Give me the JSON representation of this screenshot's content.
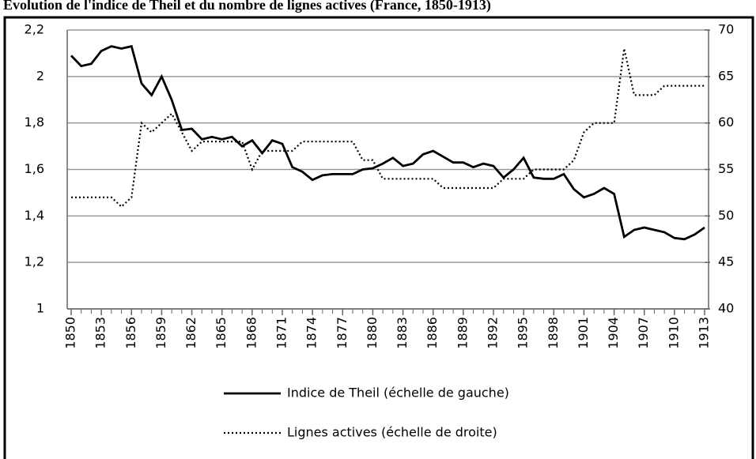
{
  "chart_data": {
    "type": "line",
    "title": "Évolution de l'indice de Theil et du nombre de lignes actives (France, 1850-1913)",
    "x": [
      1850,
      1851,
      1852,
      1853,
      1854,
      1855,
      1856,
      1857,
      1858,
      1859,
      1860,
      1861,
      1862,
      1863,
      1864,
      1865,
      1866,
      1867,
      1868,
      1869,
      1870,
      1871,
      1872,
      1873,
      1874,
      1875,
      1876,
      1877,
      1878,
      1879,
      1880,
      1881,
      1882,
      1883,
      1884,
      1885,
      1886,
      1887,
      1888,
      1889,
      1890,
      1891,
      1892,
      1893,
      1894,
      1895,
      1896,
      1897,
      1898,
      1899,
      1900,
      1901,
      1902,
      1903,
      1904,
      1905,
      1906,
      1907,
      1908,
      1909,
      1910,
      1911,
      1912,
      1913
    ],
    "xlim": [
      1850,
      1913
    ],
    "xticks": [
      1850,
      1853,
      1856,
      1859,
      1862,
      1865,
      1868,
      1871,
      1874,
      1877,
      1880,
      1883,
      1886,
      1889,
      1892,
      1895,
      1898,
      1901,
      1904,
      1907,
      1910,
      1913
    ],
    "ylim": [
      1,
      2.2
    ],
    "yticks": [
      1,
      {
        "value": 1.2,
        "label": "1,2"
      },
      {
        "value": 1.4,
        "label": "1,4"
      },
      {
        "value": 1.6,
        "label": "1,6"
      },
      {
        "value": 1.8,
        "label": "1,8"
      },
      2,
      {
        "value": 2.2,
        "label": "2,2"
      }
    ],
    "y2lim": [
      40,
      70
    ],
    "y2ticks": [
      40,
      45,
      50,
      55,
      60,
      65,
      70
    ],
    "grid": true,
    "legend": "bottom",
    "series": [
      {
        "name": "Indice de Theil (échelle de gauche)",
        "color": "#000000",
        "style": "solid",
        "values": [
          2.09,
          2.045,
          2.055,
          2.11,
          2.13,
          2.12,
          2.13,
          1.97,
          1.92,
          2.0,
          1.9,
          1.77,
          1.775,
          1.73,
          1.74,
          1.73,
          1.74,
          1.7,
          1.725,
          1.67,
          1.725,
          1.71,
          1.61,
          1.59,
          1.555,
          1.575,
          1.58,
          1.58,
          1.58,
          1.6,
          1.605,
          1.625,
          1.65,
          1.615,
          1.625,
          1.665,
          1.68,
          1.655,
          1.63,
          1.63,
          1.61,
          1.625,
          1.615,
          1.565,
          1.6,
          1.65,
          1.565,
          1.56,
          1.56,
          1.58,
          1.515,
          1.48,
          1.495,
          1.52,
          1.495,
          1.31,
          1.34,
          1.35,
          1.34,
          1.33,
          1.305,
          1.3,
          1.32,
          1.35
        ]
      },
      {
        "name": "Lignes actives (échelle de droite)",
        "color": "#000000",
        "style": "dotted",
        "axis": "y2",
        "values": [
          52,
          52,
          52,
          52,
          52,
          51,
          52,
          60,
          59,
          60,
          61,
          59,
          57,
          58,
          58,
          58,
          58,
          58,
          55,
          57,
          57,
          57,
          57,
          58,
          58,
          58,
          58,
          58,
          58,
          56,
          56,
          54,
          54,
          54,
          54,
          54,
          54,
          53,
          53,
          53,
          53,
          53,
          53,
          54,
          54,
          54,
          55,
          55,
          55,
          55,
          56,
          59,
          60,
          60,
          60,
          68,
          63,
          63,
          63,
          64,
          64,
          64,
          64,
          64
        ]
      }
    ]
  }
}
